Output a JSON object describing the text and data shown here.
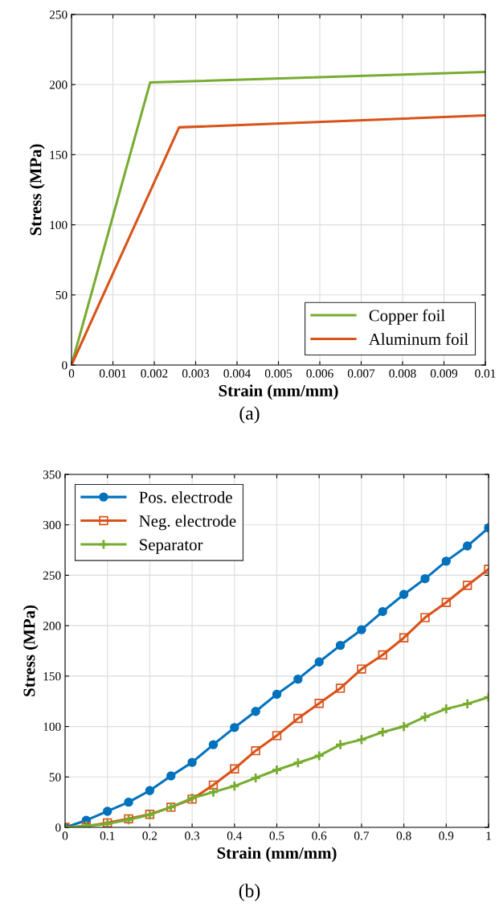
{
  "chart_data": [
    {
      "type": "line",
      "xlabel": "Strain (mm/mm)",
      "ylabel": "Stress (MPa)",
      "annotations": [
        "(a)"
      ],
      "xlim": [
        0,
        0.01
      ],
      "xticks": [
        0,
        0.001,
        0.002,
        0.003,
        0.004,
        0.005,
        0.006,
        0.007,
        0.008,
        0.009,
        0.01
      ],
      "ylim": [
        0,
        250
      ],
      "yticks": [
        0,
        50,
        100,
        150,
        200,
        250
      ],
      "grid": true,
      "legend": "bottom right",
      "marker": "none",
      "line_style": "solid",
      "series": [
        {
          "name": "Copper foil",
          "color": "#77ac30",
          "x": [
            0,
            0.0019,
            0.01
          ],
          "values": [
            0,
            201.5,
            209
          ]
        },
        {
          "name": "Aluminum foil",
          "color": "#d95319",
          "x": [
            0,
            0.0026,
            0.01
          ],
          "values": [
            0,
            169.5,
            178
          ]
        }
      ]
    },
    {
      "type": "line",
      "xlabel": "Strain (mm/mm)",
      "ylabel": "Stress (MPa)",
      "annotations": [
        "(b)"
      ],
      "x": [
        0,
        0.05,
        0.1,
        0.15,
        0.2,
        0.25,
        0.3,
        0.35,
        0.4,
        0.45,
        0.5,
        0.55,
        0.6,
        0.65,
        0.7,
        0.75,
        0.8,
        0.85,
        0.9,
        0.95,
        1
      ],
      "xlim": [
        0,
        1
      ],
      "xticks": [
        0,
        0.1,
        0.2,
        0.3,
        0.4,
        0.5,
        0.6,
        0.7,
        0.8,
        0.9,
        1
      ],
      "ylim": [
        0,
        350
      ],
      "yticks": [
        0,
        50,
        100,
        150,
        200,
        250,
        300,
        350
      ],
      "grid": true,
      "legend": "top left",
      "line_style": "solid",
      "series": [
        {
          "name": "Pos. electrode",
          "color": "#0072bd",
          "marker": "circle",
          "values": [
            0,
            7,
            16,
            25,
            36.5,
            51,
            64.5,
            82,
            99,
            115,
            132,
            147,
            164,
            180.5,
            196,
            214,
            231,
            246.5,
            264,
            279,
            297
          ]
        },
        {
          "name": "Neg. electrode",
          "color": "#d95319",
          "marker": "square",
          "values": [
            0,
            1,
            4.5,
            8.5,
            13,
            20,
            28,
            42,
            58,
            76,
            91,
            108,
            123,
            138,
            157,
            171,
            188,
            208,
            223,
            240,
            256
          ]
        },
        {
          "name": "Separator",
          "color": "#77ac30",
          "marker": "cross",
          "values": [
            0,
            1.5,
            3.5,
            7.5,
            12.5,
            20,
            29,
            35,
            41,
            49,
            57,
            64,
            71,
            82,
            87,
            94.5,
            100,
            109.5,
            117.5,
            122.5,
            129
          ]
        }
      ]
    }
  ]
}
